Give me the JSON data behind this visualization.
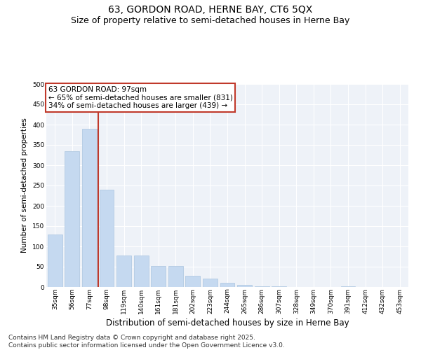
{
  "title": "63, GORDON ROAD, HERNE BAY, CT6 5QX",
  "subtitle": "Size of property relative to semi-detached houses in Herne Bay",
  "xlabel": "Distribution of semi-detached houses by size in Herne Bay",
  "ylabel": "Number of semi-detached properties",
  "categories": [
    "35sqm",
    "56sqm",
    "77sqm",
    "98sqm",
    "119sqm",
    "140sqm",
    "161sqm",
    "181sqm",
    "202sqm",
    "223sqm",
    "244sqm",
    "265sqm",
    "286sqm",
    "307sqm",
    "328sqm",
    "349sqm",
    "370sqm",
    "391sqm",
    "412sqm",
    "432sqm",
    "453sqm"
  ],
  "values": [
    130,
    335,
    390,
    240,
    78,
    78,
    52,
    52,
    27,
    20,
    10,
    6,
    2,
    1,
    0,
    0,
    0,
    1,
    0,
    0,
    0
  ],
  "bar_color": "#c5d9f0",
  "bar_edgecolor": "#aac4e0",
  "vline_color": "#c0392b",
  "vline_pos": 2.5,
  "annotation_title": "63 GORDON ROAD: 97sqm",
  "annotation_line1": "← 65% of semi-detached houses are smaller (831)",
  "annotation_line2": "34% of semi-detached houses are larger (439) →",
  "annotation_box_edgecolor": "#c0392b",
  "ylim": [
    0,
    500
  ],
  "yticks": [
    0,
    50,
    100,
    150,
    200,
    250,
    300,
    350,
    400,
    450,
    500
  ],
  "footer": "Contains HM Land Registry data © Crown copyright and database right 2025.\nContains public sector information licensed under the Open Government Licence v3.0.",
  "plot_bg_color": "#eef2f8",
  "title_fontsize": 10,
  "subtitle_fontsize": 9,
  "xlabel_fontsize": 8.5,
  "ylabel_fontsize": 7.5,
  "tick_fontsize": 6.5,
  "annot_fontsize": 7.5,
  "footer_fontsize": 6.5
}
